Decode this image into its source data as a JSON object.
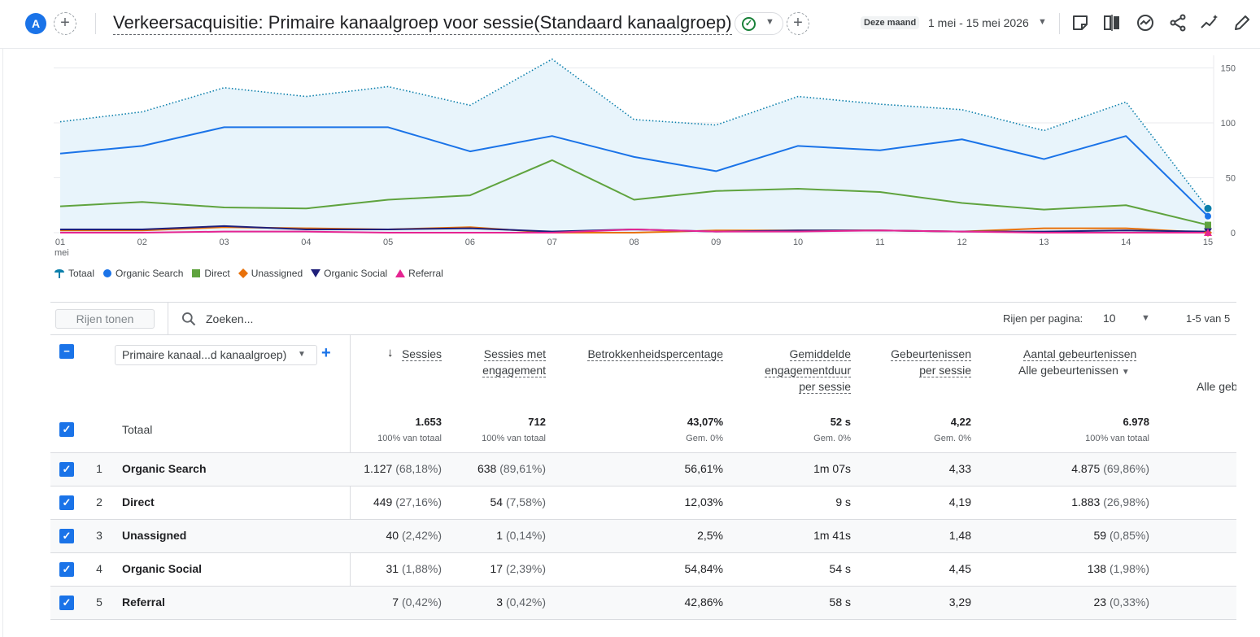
{
  "header": {
    "avatar_letter": "A",
    "add_comparison": "+",
    "title": "Verkeersacquisitie: Primaire kanaalgroep voor sessie(Standaard kanaalgroep)",
    "date_label": "Deze maand",
    "date_range": "1 mei - 15 mei 2026",
    "icons": [
      "note-icon",
      "compare-icon",
      "insights-icon",
      "share-icon",
      "trend-icon",
      "edit-icon"
    ]
  },
  "chart_data": {
    "type": "line",
    "x": [
      "01",
      "02",
      "03",
      "04",
      "05",
      "06",
      "07",
      "08",
      "09",
      "10",
      "11",
      "12",
      "13",
      "14",
      "15"
    ],
    "x_sublabel": "mei",
    "yticks": [
      "150",
      "100",
      "50",
      "0"
    ],
    "ylim": [
      0,
      160
    ],
    "grid": true,
    "legend_position": "bottom-left",
    "series": [
      {
        "name": "Totaal",
        "color": "#0b7fab",
        "style": "dotted-area",
        "values": [
          101,
          110,
          132,
          124,
          133,
          116,
          158,
          103,
          98,
          124,
          117,
          112,
          93,
          119,
          22
        ]
      },
      {
        "name": "Organic Search",
        "color": "#1a73e8",
        "style": "solid",
        "values": [
          72,
          79,
          96,
          96,
          96,
          74,
          88,
          69,
          56,
          79,
          75,
          85,
          67,
          88,
          15
        ]
      },
      {
        "name": "Direct",
        "color": "#5fa33e",
        "style": "solid",
        "values": [
          24,
          28,
          23,
          22,
          30,
          34,
          66,
          30,
          38,
          40,
          37,
          27,
          21,
          25,
          7
        ]
      },
      {
        "name": "Unassigned",
        "color": "#e8710a",
        "style": "solid",
        "values": [
          2,
          2,
          5,
          4,
          3,
          5,
          0,
          0,
          2,
          2,
          2,
          1,
          4,
          4,
          0
        ]
      },
      {
        "name": "Organic Social",
        "color": "#1f1f7a",
        "style": "solid",
        "values": [
          3,
          3,
          6,
          3,
          3,
          4,
          1,
          3,
          1,
          2,
          2,
          1,
          1,
          2,
          1
        ]
      },
      {
        "name": "Referral",
        "color": "#e52592",
        "style": "solid",
        "values": [
          0,
          0,
          1,
          1,
          0,
          0,
          0,
          3,
          1,
          1,
          2,
          1,
          0,
          0,
          0
        ]
      }
    ]
  },
  "legend": [
    {
      "name": "Totaal",
      "icon": "totaal-marker-icon",
      "color": "#0b7fab"
    },
    {
      "name": "Organic Search",
      "icon": "circle-marker-icon",
      "color": "#1a73e8"
    },
    {
      "name": "Direct",
      "icon": "square-marker-icon",
      "color": "#5fa33e"
    },
    {
      "name": "Unassigned",
      "icon": "diamond-marker-icon",
      "color": "#e8710a"
    },
    {
      "name": "Organic Social",
      "icon": "triangle-down-marker-icon",
      "color": "#1f1f7a"
    },
    {
      "name": "Referral",
      "icon": "triangle-up-marker-icon",
      "color": "#e52592"
    }
  ],
  "toolbar": {
    "rows_button": "Rijen tonen",
    "search_placeholder": "Zoeken...",
    "rows_per_page_label": "Rijen per pagina:",
    "rows_per_page": "10",
    "pager": "1-5 van 5"
  },
  "table": {
    "dimension": "Primaire kanaal...d kanaalgroep)",
    "columns": [
      {
        "key": "sessies",
        "label": "Sessies"
      },
      {
        "key": "engaged",
        "label_1": "Sessies met",
        "label_2": "engagement"
      },
      {
        "key": "rate",
        "label": "Betrokkenheidspercentage"
      },
      {
        "key": "duration",
        "label_1": "Gemiddelde",
        "label_2": "engagementduur",
        "label_3": "per sessie"
      },
      {
        "key": "evps",
        "label_1": "Gebeurtenissen",
        "label_2": "per sessie"
      },
      {
        "key": "events",
        "label": "Aantal gebeurtenissen",
        "filter": "Alle gebeurtenissen"
      }
    ],
    "extra_column_label": "Alle geb",
    "totals": {
      "label": "Totaal",
      "sessies": "1.653",
      "sessies_sub": "100% van totaal",
      "engaged": "712",
      "engaged_sub": "100% van totaal",
      "rate": "43,07%",
      "rate_sub": "Gem. 0%",
      "duration": "52 s",
      "duration_sub": "Gem. 0%",
      "evps": "4,22",
      "evps_sub": "Gem. 0%",
      "events": "6.978",
      "events_sub": "100% van totaal"
    },
    "rows": [
      {
        "idx": "1",
        "channel": "Organic Search",
        "sessies": "1.127",
        "sessies_pct": "(68,18%)",
        "engaged": "638",
        "engaged_pct": "(89,61%)",
        "rate": "56,61%",
        "duration": "1m 07s",
        "evps": "4,33",
        "events": "4.875",
        "events_pct": "(69,86%)"
      },
      {
        "idx": "2",
        "channel": "Direct",
        "sessies": "449",
        "sessies_pct": "(27,16%)",
        "engaged": "54",
        "engaged_pct": "(7,58%)",
        "rate": "12,03%",
        "duration": "9 s",
        "evps": "4,19",
        "events": "1.883",
        "events_pct": "(26,98%)"
      },
      {
        "idx": "3",
        "channel": "Unassigned",
        "sessies": "40",
        "sessies_pct": "(2,42%)",
        "engaged": "1",
        "engaged_pct": "(0,14%)",
        "rate": "2,5%",
        "duration": "1m 41s",
        "evps": "1,48",
        "events": "59",
        "events_pct": "(0,85%)"
      },
      {
        "idx": "4",
        "channel": "Organic Social",
        "sessies": "31",
        "sessies_pct": "(1,88%)",
        "engaged": "17",
        "engaged_pct": "(2,39%)",
        "rate": "54,84%",
        "duration": "54 s",
        "evps": "4,45",
        "events": "138",
        "events_pct": "(1,98%)"
      },
      {
        "idx": "5",
        "channel": "Referral",
        "sessies": "7",
        "sessies_pct": "(0,42%)",
        "engaged": "3",
        "engaged_pct": "(0,42%)",
        "rate": "42,86%",
        "duration": "58 s",
        "evps": "3,29",
        "events": "23",
        "events_pct": "(0,33%)"
      }
    ]
  }
}
